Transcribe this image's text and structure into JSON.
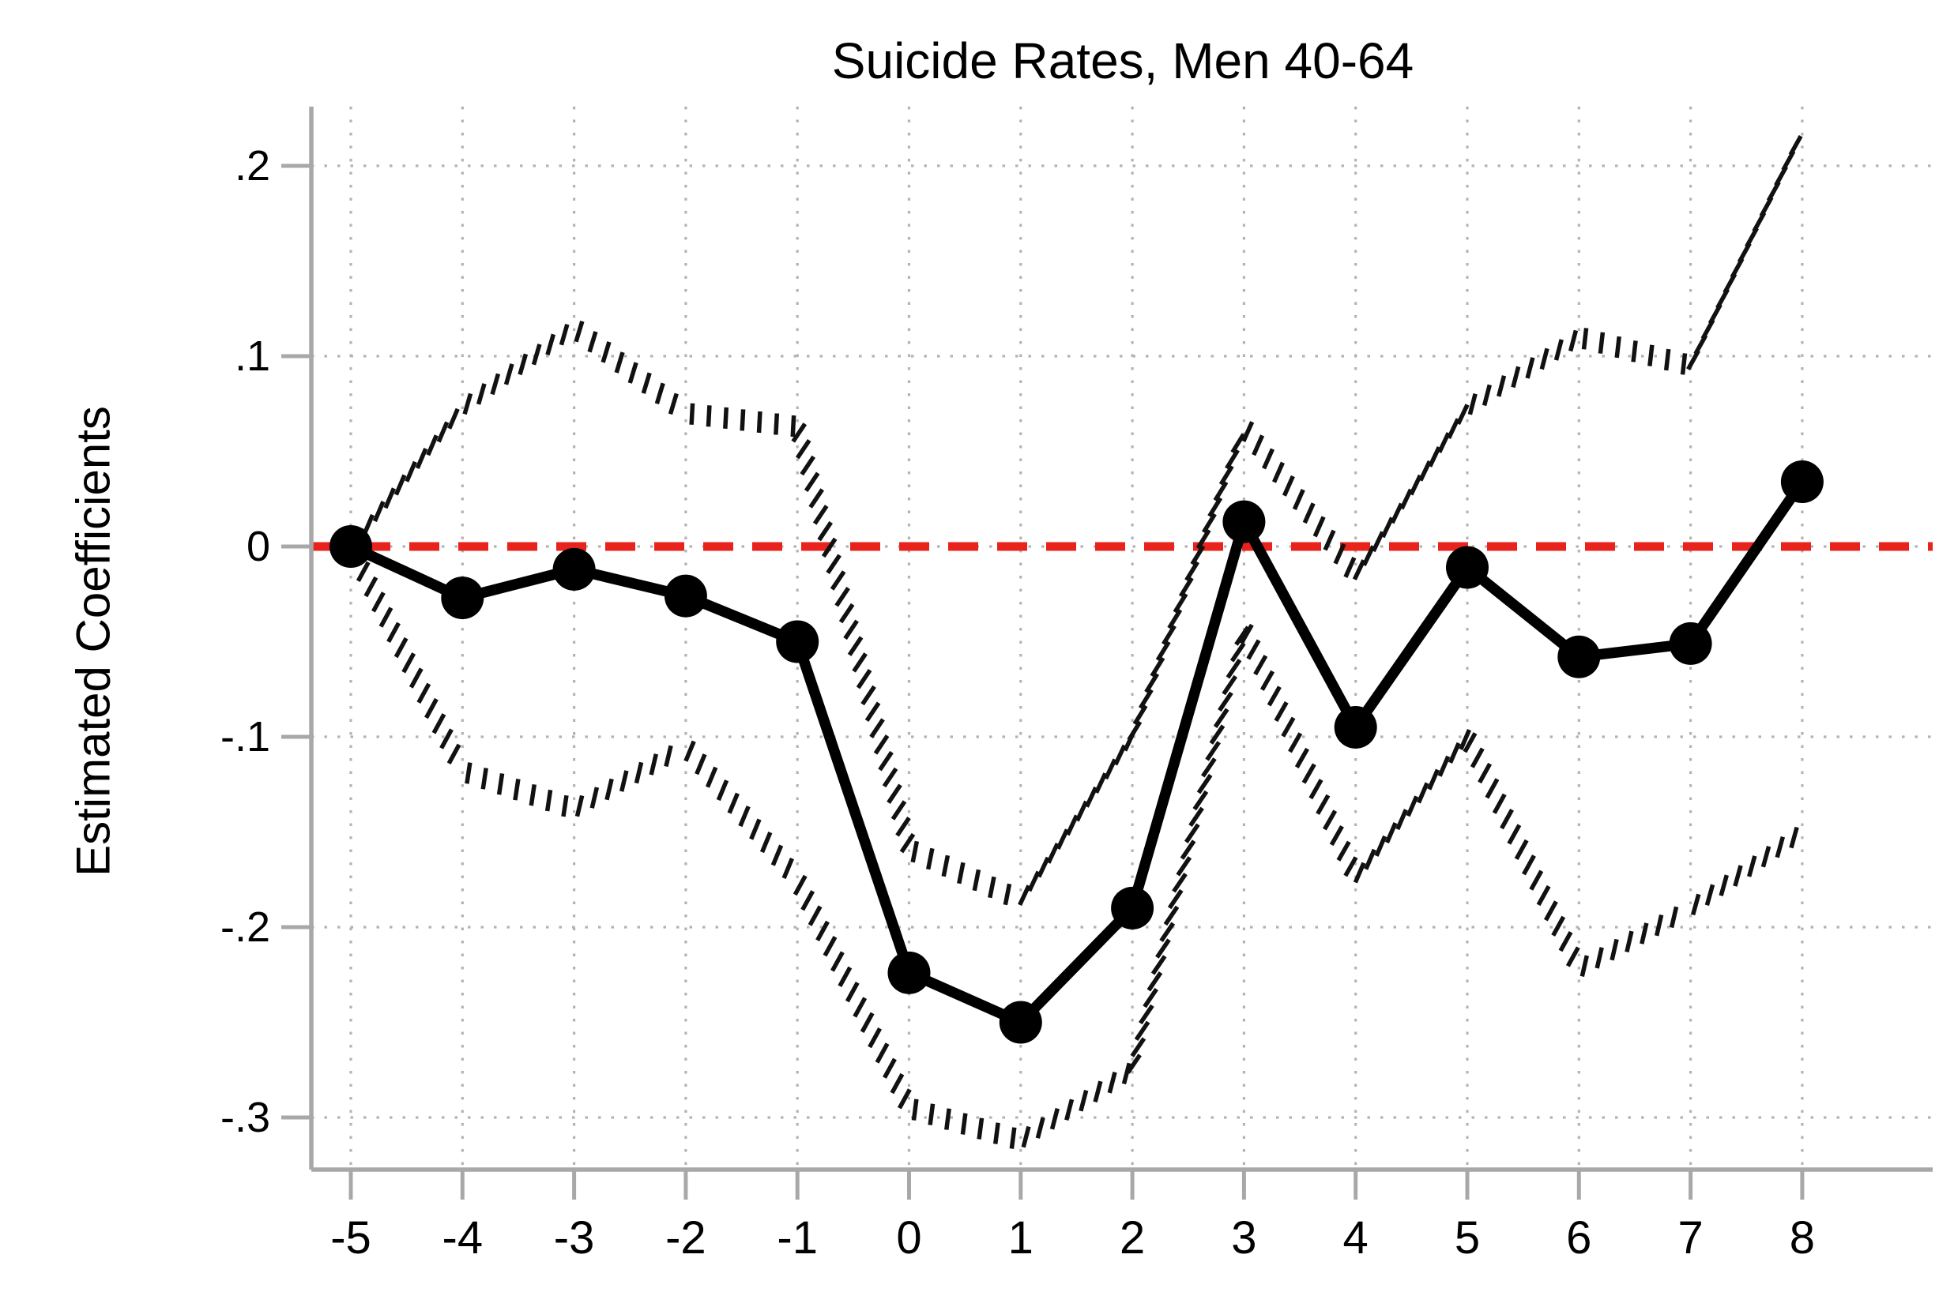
{
  "title": "Suicide Rates, Men 40-64",
  "ylabel": "Estimated Coefficients",
  "xlabel": "",
  "colors": {
    "series": "#000000",
    "ci": "#111111",
    "zero_line": "#e8231d",
    "grid": "#b3b3b3",
    "axis": "#a8a8a8"
  },
  "chart_data": {
    "type": "line",
    "title": "Suicide Rates, Men 40-64",
    "ylabel": "Estimated Coefficients",
    "xlabel": "",
    "x": [
      -5,
      -4,
      -3,
      -2,
      -1,
      0,
      1,
      2,
      3,
      4,
      5,
      6,
      7,
      8
    ],
    "series": [
      {
        "name": "estimated-coefficient",
        "style": "solid-line-with-circle-markers",
        "color": "#000000",
        "values": [
          0.0,
          -0.027,
          -0.012,
          -0.026,
          -0.05,
          -0.224,
          -0.25,
          -0.19,
          0.013,
          -0.095,
          -0.011,
          -0.058,
          -0.051,
          0.034
        ]
      },
      {
        "name": "ci-upper-bound",
        "style": "short-dash-line",
        "color": "#111111",
        "values": [
          0.0,
          0.073,
          0.115,
          0.07,
          0.063,
          -0.159,
          -0.186,
          -0.1,
          0.063,
          -0.015,
          0.073,
          0.11,
          0.095,
          0.218
        ]
      },
      {
        "name": "ci-lower-bound",
        "style": "short-dash-line",
        "color": "#111111",
        "values": [
          0.0,
          -0.118,
          -0.138,
          -0.105,
          -0.175,
          -0.295,
          -0.312,
          -0.275,
          -0.043,
          -0.174,
          -0.1,
          -0.222,
          -0.19,
          -0.15
        ]
      }
    ],
    "reference_line": {
      "y": 0,
      "color": "#e8231d",
      "style": "dashed"
    },
    "x_ticks": [
      "-5",
      "-4",
      "-3",
      "-2",
      "-1",
      "0",
      "1",
      "2",
      "3",
      "4",
      "5",
      "6",
      "7",
      "8"
    ],
    "y_ticks": [
      {
        "label": ".2",
        "value": 0.2
      },
      {
        "label": ".1",
        "value": 0.1
      },
      {
        "label": "0",
        "value": 0.0
      },
      {
        "label": "-.1",
        "value": -0.1
      },
      {
        "label": "-.2",
        "value": -0.2
      },
      {
        "label": "-.3",
        "value": -0.3
      }
    ],
    "xlim": [
      -5,
      8
    ],
    "ylim": [
      -0.33,
      0.23
    ],
    "grid": "dotted-both-axes",
    "legend": "none"
  }
}
